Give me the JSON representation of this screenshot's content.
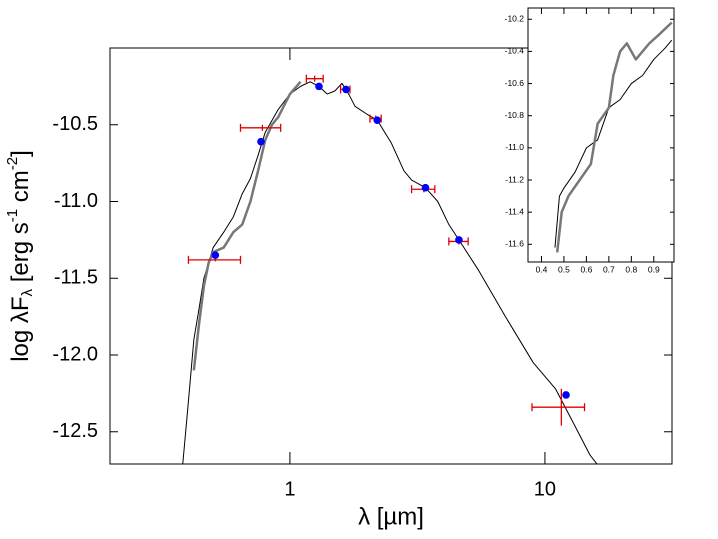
{
  "chart_data": [
    {
      "type": "line",
      "log_x": true,
      "x_label": "λ [µm]",
      "y_label": [
        "log λF",
        "λ",
        " [erg s",
        "-1",
        " cm",
        "-2",
        "]"
      ],
      "xlim": [
        0.197,
        31.5
      ],
      "ylim": [
        -12.71,
        -10.0
      ],
      "xticks": [
        1,
        10
      ],
      "yticks": [
        -10.5,
        {
          "value": -11,
          "label": "-11.0"
        },
        -11.5,
        {
          "value": -12,
          "label": "-12.0"
        },
        -12.5
      ],
      "series": [
        {
          "color": "#000000",
          "width": 1,
          "x": [
            0.38,
            0.4,
            0.42,
            0.44,
            0.46,
            0.48,
            0.5,
            0.55,
            0.6,
            0.65,
            0.7,
            0.75,
            0.8,
            0.9,
            1.0,
            1.1,
            1.2,
            1.3,
            1.4,
            1.5,
            1.6,
            1.7,
            1.8,
            2.0,
            2.2,
            2.5,
            2.8,
            3.0,
            3.4,
            3.8,
            4.2,
            4.6,
            5.5,
            7,
            9,
            11,
            13,
            15,
            16
          ],
          "values": [
            -12.71,
            -12.3,
            -11.9,
            -11.7,
            -11.5,
            -11.4,
            -11.3,
            -11.2,
            -11.1,
            -10.95,
            -10.85,
            -10.7,
            -10.55,
            -10.4,
            -10.3,
            -10.25,
            -10.22,
            -10.25,
            -10.3,
            -10.28,
            -10.23,
            -10.3,
            -10.38,
            -10.43,
            -10.47,
            -10.62,
            -10.8,
            -10.86,
            -10.91,
            -11.0,
            -11.15,
            -11.25,
            -11.45,
            -11.75,
            -12.05,
            -12.22,
            -12.45,
            -12.65,
            -12.71
          ]
        },
        {
          "color": "#777777",
          "width": 2.5,
          "x": [
            0.42,
            0.44,
            0.46,
            0.48,
            0.5,
            0.55,
            0.6,
            0.65,
            0.7,
            0.75,
            0.8,
            0.85,
            0.9,
            1.0,
            1.1
          ],
          "values": [
            -12.1,
            -11.8,
            -11.55,
            -11.4,
            -11.33,
            -11.3,
            -11.2,
            -11.15,
            -11.0,
            -10.8,
            -10.6,
            -10.5,
            -10.45,
            -10.3,
            -10.22
          ]
        }
      ],
      "observed": {
        "color": "#e00000",
        "x": [
          0.51,
          0.78,
          1.25,
          1.65,
          2.17,
          3.35,
          4.6,
          11.6
        ],
        "values": [
          -11.38,
          -10.52,
          -10.2,
          -10.27,
          -10.46,
          -10.92,
          -11.26,
          -12.34
        ],
        "x_low": [
          0.4,
          0.64,
          1.16,
          1.58,
          2.06,
          3.0,
          4.2,
          8.9
        ],
        "x_high": [
          0.64,
          0.92,
          1.35,
          1.72,
          2.28,
          3.7,
          5.0,
          14.3
        ],
        "y_err": [
          0.01,
          0.02,
          0.02,
          0.02,
          0.02,
          0.02,
          0.02,
          0.12
        ]
      },
      "model_points": {
        "color": "#0000ff",
        "x": [
          0.51,
          0.77,
          1.3,
          1.66,
          2.2,
          3.4,
          4.6,
          12.1
        ],
        "values": [
          -11.35,
          -10.61,
          -10.25,
          -10.27,
          -10.47,
          -10.91,
          -11.25,
          -12.26
        ]
      }
    },
    {
      "type": "line",
      "log_x": false,
      "xlim": [
        0.34,
        0.99
      ],
      "ylim": [
        -11.71,
        -10.13
      ],
      "xticks": [
        0.4,
        0.5,
        0.6,
        0.7,
        0.8,
        0.9
      ],
      "yticks": [
        -10.2,
        -10.4,
        -10.6,
        -10.8,
        {
          "value": -11,
          "label": "-11.0"
        },
        -11.2,
        -11.4,
        -11.6
      ],
      "series": [
        {
          "color": "#000000",
          "width": 1,
          "x": [
            0.46,
            0.48,
            0.5,
            0.55,
            0.6,
            0.65,
            0.7,
            0.75,
            0.8,
            0.85,
            0.9,
            0.95,
            0.98
          ],
          "values": [
            -11.62,
            -11.3,
            -11.25,
            -11.15,
            -11.0,
            -10.95,
            -10.75,
            -10.7,
            -10.6,
            -10.55,
            -10.45,
            -10.38,
            -10.33
          ]
        },
        {
          "color": "#777777",
          "width": 2.5,
          "x": [
            0.47,
            0.49,
            0.52,
            0.57,
            0.62,
            0.65,
            0.7,
            0.72,
            0.75,
            0.78,
            0.82,
            0.88,
            0.92,
            0.98
          ],
          "values": [
            -11.65,
            -11.4,
            -11.3,
            -11.2,
            -11.1,
            -10.85,
            -10.75,
            -10.55,
            -10.4,
            -10.35,
            -10.45,
            -10.35,
            -10.3,
            -10.22
          ]
        }
      ]
    }
  ]
}
